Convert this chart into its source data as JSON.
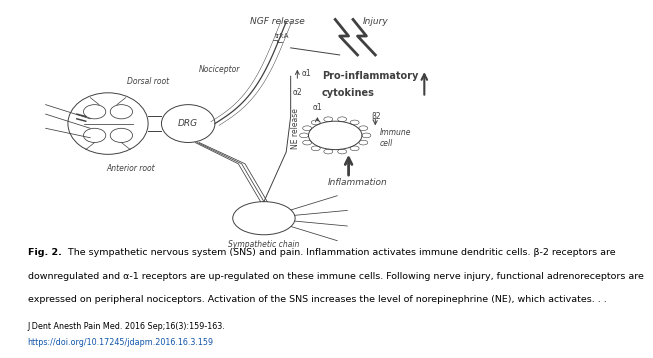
{
  "caption_bold": "Fig. 2.",
  "caption_text": " The sympathetic nervous system (SNS) and pain. Inflammation activates immune dendritic cells. β-2 receptors are downregulated and α-1 receptors are up-regulated on these immune cells. Following nerve injury, functional adrenoreceptors are expressed on peripheral nociceptors. Activation of the SNS increases the level of norepinephrine (NE), which activates. . .",
  "citation_line1": "J Dent Anesth Pain Med. 2016 Sep;16(3):159-163.",
  "citation_line2": "https://doi.org/10.17245/jdapm.2016.16.3.159",
  "bg_color": "#ffffff",
  "text_color": "#000000",
  "caption_fontsize": 6.8,
  "citation_fontsize": 5.8,
  "diagram": {
    "NGF_release": "NGF release",
    "Injury": "Injury",
    "trkA": "trkA",
    "alpha1": "α1",
    "alpha2": "α2",
    "NE_release": "NE release",
    "Pro_inflammatory": "Pro-inflammatory",
    "cytokines": "cytokines",
    "Dorsal_root": "Dorsal root",
    "Nociceptor": "Nociceptor",
    "DRG": "DRG",
    "Anterior_root": "Anterior root",
    "Sympathetic_chain": "Sympathetic chain",
    "Inflammation": "Inflammation",
    "Immune_cell": "Immune\ncell",
    "alpha1_immune": "α1",
    "beta2_immune": "β2"
  }
}
